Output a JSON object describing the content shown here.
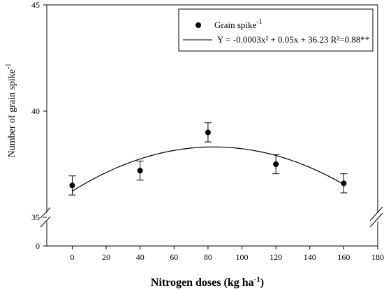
{
  "chart_data": {
    "type": "scatter",
    "xlabel": "Nitrogen doses (kg ha",
    "xlabel_sup": "-1",
    "xlabel_end": ")",
    "ylabel": "Number of grain spike",
    "ylabel_sup": "-1",
    "x_ticks": [
      0,
      20,
      40,
      60,
      80,
      100,
      120,
      140,
      160,
      180
    ],
    "y_ticks_upper": [
      35,
      40,
      45
    ],
    "y_ticks_lower": [
      0
    ],
    "xlim": [
      -15,
      180
    ],
    "ylim_upper": [
      35,
      45
    ],
    "ylim_lower": [
      0,
      35
    ],
    "axis_break": true,
    "grid": false,
    "legend_position": "top-right",
    "series": [
      {
        "name": "Grain spike",
        "name_sup": "-1",
        "marker": "filled-circle",
        "x": [
          0,
          40,
          80,
          120,
          160
        ],
        "y": [
          36.5,
          37.2,
          39.0,
          37.5,
          36.6
        ],
        "error": [
          0.45,
          0.45,
          0.45,
          0.45,
          0.45
        ]
      }
    ],
    "fit": {
      "label": "Y = -0.0003x² + 0.05x +  36.23 R²=0.88**",
      "a": -0.0003,
      "b": 0.05,
      "c": 36.23,
      "x_range": [
        0,
        160
      ]
    }
  }
}
